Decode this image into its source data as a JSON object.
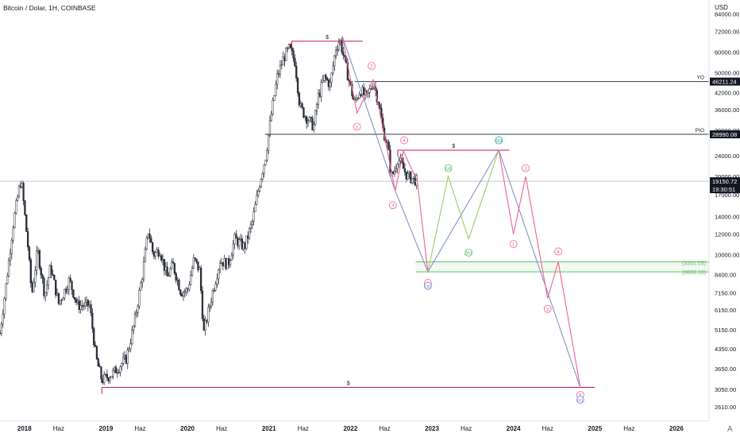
{
  "header": {
    "title": "Bitcoin / Dolar, 1H, COINBASE",
    "currency": "USD"
  },
  "watermark": "A",
  "colors": {
    "up": "#1e1e1e",
    "down": "#1e1e1e",
    "pink": "#f06292",
    "magenta": "#c2185b",
    "blue": "#7986cb",
    "green": "#66bb6a",
    "lightgreen": "#9ccc65",
    "teal": "#26a69a",
    "hline": "#363a45",
    "grid": "#f0f3fa"
  },
  "chart_data": {
    "type": "candlestick",
    "y_scale": "log",
    "ylim": [
      2300,
      95000
    ],
    "xlim": [
      2017.7,
      2026.4
    ],
    "y_ticks": [
      "84000.00",
      "72000.00",
      "60000.00",
      "50000.00",
      "42000.00",
      "36000.00",
      "29990.08",
      "24000.00",
      "20000.00",
      "17000.00",
      "14000.00",
      "12000.00",
      "10000.00",
      "8400.00",
      "7150.00",
      "6150.00",
      "5150.00",
      "4350.00",
      "3650.00",
      "3050.00",
      "2610.00"
    ],
    "y_tick_values": [
      84000,
      72000,
      60000,
      50000,
      42000,
      36000,
      29990,
      24000,
      20000,
      17000,
      14000,
      12000,
      10000,
      8400,
      7150,
      6150,
      5150,
      4350,
      3650,
      3050,
      2610
    ],
    "x_ticks": [
      {
        "label": "2018",
        "x": 2018.0
      },
      {
        "label": "Haz",
        "x": 2018.42
      },
      {
        "label": "2019",
        "x": 2019.0
      },
      {
        "label": "Haz",
        "x": 2019.42
      },
      {
        "label": "2020",
        "x": 2020.0
      },
      {
        "label": "Haz",
        "x": 2020.42
      },
      {
        "label": "2021",
        "x": 2021.0
      },
      {
        "label": "Haz",
        "x": 2021.42
      },
      {
        "label": "2022",
        "x": 2022.0
      },
      {
        "label": "Haz",
        "x": 2022.42
      },
      {
        "label": "2023",
        "x": 2023.0
      },
      {
        "label": "Haz",
        "x": 2023.42
      },
      {
        "label": "2024",
        "x": 2024.0
      },
      {
        "label": "Haz",
        "x": 2024.42
      },
      {
        "label": "2025",
        "x": 2025.0
      },
      {
        "label": "Haz",
        "x": 2025.42
      },
      {
        "label": "2026",
        "x": 2026.0
      }
    ],
    "price_path": [
      [
        2017.7,
        5000
      ],
      [
        2017.78,
        8000
      ],
      [
        2017.86,
        13000
      ],
      [
        2017.92,
        17000
      ],
      [
        2017.96,
        19500
      ],
      [
        2018.04,
        11000
      ],
      [
        2018.09,
        7000
      ],
      [
        2018.16,
        10500
      ],
      [
        2018.25,
        7000
      ],
      [
        2018.32,
        9000
      ],
      [
        2018.42,
        6500
      ],
      [
        2018.55,
        8000
      ],
      [
        2018.65,
        6400
      ],
      [
        2018.8,
        6400
      ],
      [
        2018.88,
        4000
      ],
      [
        2018.95,
        3300
      ],
      [
        2019.08,
        3500
      ],
      [
        2019.25,
        4000
      ],
      [
        2019.35,
        5500
      ],
      [
        2019.45,
        8500
      ],
      [
        2019.52,
        12500
      ],
      [
        2019.58,
        10000
      ],
      [
        2019.66,
        10500
      ],
      [
        2019.75,
        8200
      ],
      [
        2019.82,
        9200
      ],
      [
        2019.92,
        7200
      ],
      [
        2020.0,
        7300
      ],
      [
        2020.08,
        9600
      ],
      [
        2020.15,
        8700
      ],
      [
        2020.2,
        5000
      ],
      [
        2020.3,
        7000
      ],
      [
        2020.4,
        9500
      ],
      [
        2020.5,
        9200
      ],
      [
        2020.58,
        11500
      ],
      [
        2020.7,
        10700
      ],
      [
        2020.8,
        13500
      ],
      [
        2020.88,
        18500
      ],
      [
        2020.96,
        24000
      ],
      [
        2021.02,
        33000
      ],
      [
        2021.1,
        48000
      ],
      [
        2021.18,
        57000
      ],
      [
        2021.25,
        62000
      ],
      [
        2021.32,
        55000
      ],
      [
        2021.38,
        37000
      ],
      [
        2021.45,
        34000
      ],
      [
        2021.55,
        31000
      ],
      [
        2021.6,
        40000
      ],
      [
        2021.68,
        48000
      ],
      [
        2021.75,
        45000
      ],
      [
        2021.82,
        62000
      ],
      [
        2021.87,
        67000
      ],
      [
        2021.92,
        57000
      ],
      [
        2021.98,
        47000
      ],
      [
        2022.05,
        38000
      ],
      [
        2022.12,
        43000
      ],
      [
        2022.2,
        40000
      ],
      [
        2022.28,
        46000
      ],
      [
        2022.35,
        38000
      ],
      [
        2022.4,
        30000
      ],
      [
        2022.46,
        26000
      ],
      [
        2022.5,
        20000
      ],
      [
        2022.54,
        21000
      ],
      [
        2022.58,
        23500
      ],
      [
        2022.63,
        22000
      ],
      [
        2022.7,
        20000
      ],
      [
        2022.78,
        19500
      ],
      [
        2022.82,
        19150
      ]
    ],
    "horizontal_levels": [
      {
        "name": "YO",
        "value": 46211.24,
        "label": "46211.24",
        "tag": "YO"
      },
      {
        "name": "PIO",
        "value": 28990.08,
        "label": "28990.08",
        "tag": "PIO"
      },
      {
        "name": "current",
        "value": 19150.72,
        "label": "19150.72",
        "sublabel": "19:30:51"
      }
    ],
    "support_zone": {
      "upper": 9391.05,
      "lower": 8603.1,
      "upper_label": "(9391.05)",
      "lower_label": "(8603.10)",
      "x_start": 2022.8,
      "x_end": 2026.4
    },
    "dollar_levels": [
      {
        "value": 66000,
        "x_start": 2021.28,
        "x_end": 2022.15,
        "label": "$"
      },
      {
        "value": 25200,
        "x_start": 2022.58,
        "x_end": 2023.95,
        "label": "$"
      },
      {
        "value": 3100,
        "x_start": 2018.95,
        "x_end": 2025.0,
        "label": "$"
      }
    ],
    "waves": {
      "blue_projection": [
        [
          2021.9,
          69000
        ],
        [
          2022.55,
          17600
        ],
        [
          2022.95,
          8600
        ],
        [
          2023.82,
          25200
        ],
        [
          2024.82,
          3100
        ]
      ],
      "pink_past": [
        [
          2021.9,
          69000
        ],
        [
          2022.08,
          35000
        ],
        [
          2022.28,
          47000
        ],
        [
          2022.55,
          17600
        ],
        [
          2022.65,
          25000
        ],
        [
          2022.82,
          19150
        ]
      ],
      "pink_future_a": [
        [
          2022.82,
          19150
        ],
        [
          2022.95,
          8600
        ]
      ],
      "green_abc": [
        [
          2022.95,
          8600
        ],
        [
          2023.2,
          20000
        ],
        [
          2023.45,
          11500
        ],
        [
          2023.82,
          25200
        ]
      ],
      "pink_future_b": [
        [
          2023.82,
          25200
        ],
        [
          2024.0,
          12000
        ],
        [
          2024.15,
          20000
        ],
        [
          2024.42,
          6800
        ],
        [
          2024.55,
          9400
        ],
        [
          2024.82,
          3100
        ]
      ]
    },
    "wave_labels": [
      {
        "text": "1",
        "x": 2022.08,
        "y": 31000,
        "color": "pink"
      },
      {
        "text": "2",
        "x": 2022.26,
        "y": 53000,
        "color": "pink"
      },
      {
        "text": "3",
        "x": 2022.52,
        "y": 15500,
        "color": "pink"
      },
      {
        "text": "4",
        "x": 2022.66,
        "y": 27500,
        "color": "pink"
      },
      {
        "text": "5",
        "x": 2022.95,
        "y": 7800,
        "color": "pink"
      },
      {
        "text": "(a)",
        "x": 2022.95,
        "y": 7600,
        "color": "blue"
      },
      {
        "text": "(a)",
        "x": 2023.2,
        "y": 21500,
        "color": "green"
      },
      {
        "text": "(b)",
        "x": 2023.45,
        "y": 10200,
        "color": "green"
      },
      {
        "text": "(b)",
        "x": 2023.82,
        "y": 27500,
        "color": "teal"
      },
      {
        "text": "1",
        "x": 2024.0,
        "y": 11000,
        "color": "pink"
      },
      {
        "text": "2",
        "x": 2024.15,
        "y": 21500,
        "color": "pink"
      },
      {
        "text": "3",
        "x": 2024.42,
        "y": 6200,
        "color": "pink"
      },
      {
        "text": "4",
        "x": 2024.55,
        "y": 10300,
        "color": "pink"
      },
      {
        "text": "5",
        "x": 2024.82,
        "y": 2900,
        "color": "pink"
      },
      {
        "text": "(c)",
        "x": 2024.82,
        "y": 2780,
        "color": "blue"
      }
    ]
  }
}
